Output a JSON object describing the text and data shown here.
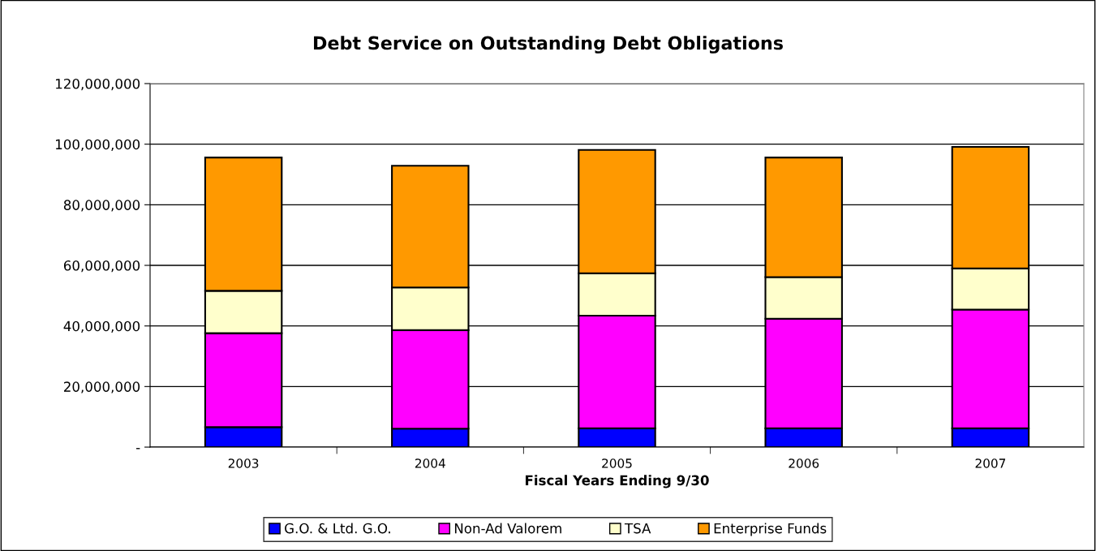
{
  "chart_data": {
    "type": "bar",
    "stacked": true,
    "title": "Debt Service on Outstanding Debt Obligations",
    "xlabel": "Fiscal Years Ending 9/30",
    "categories": [
      "2003",
      "2004",
      "2005",
      "2006",
      "2007"
    ],
    "series": [
      {
        "name": "G.O. & Ltd. G.O.",
        "color": "#0000ff",
        "values": [
          6600000,
          6100000,
          6200000,
          6200000,
          6200000
        ]
      },
      {
        "name": "Non-Ad Valorem",
        "color": "#ff00ff",
        "values": [
          31000000,
          32500000,
          37200000,
          36200000,
          39200000
        ]
      },
      {
        "name": "TSA",
        "color": "#ffffcc",
        "values": [
          14000000,
          14100000,
          14000000,
          13700000,
          13600000
        ]
      },
      {
        "name": "Enterprise Funds",
        "color": "#ff9900",
        "values": [
          44000000,
          40200000,
          40700000,
          39500000,
          40100000
        ]
      }
    ],
    "ylim": [
      0,
      120000000
    ],
    "yticks": [
      {
        "value": 0,
        "label": "-"
      },
      {
        "value": 20000000,
        "label": "20,000,000"
      },
      {
        "value": 40000000,
        "label": "40,000,000"
      },
      {
        "value": 60000000,
        "label": "60,000,000"
      },
      {
        "value": 80000000,
        "label": "80,000,000"
      },
      {
        "value": 100000000,
        "label": "100,000,000"
      },
      {
        "value": 120000000,
        "label": "120,000,000"
      }
    ],
    "grid": "y",
    "legend": "bottom"
  }
}
